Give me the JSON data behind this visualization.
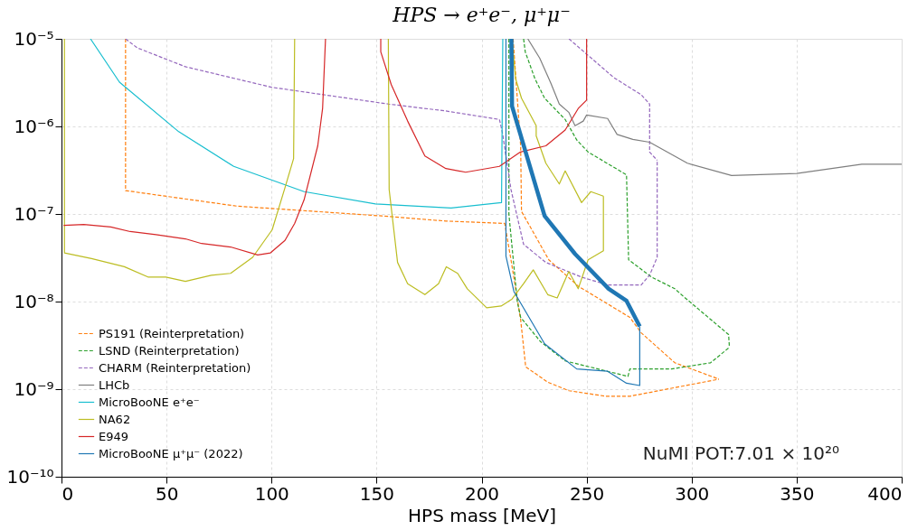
{
  "chart_data": {
    "type": "line",
    "title": "HPS → e⁺e⁻, μ⁺μ⁻",
    "xlabel": "HPS mass [MeV]",
    "log": true,
    "grid": true,
    "legend": "bottom left",
    "marker": "none",
    "xlim": [
      0,
      400
    ],
    "xticks": [
      0,
      50,
      100,
      150,
      200,
      250,
      300,
      350,
      400
    ],
    "ylim": [
      1e-10,
      1e-05
    ],
    "yticks": [
      {
        "value": 1e-10,
        "label": "10⁻¹⁰"
      },
      {
        "value": 1e-09,
        "label": "10⁻⁹"
      },
      {
        "value": 1e-08,
        "label": "10⁻⁸"
      },
      {
        "value": 1e-07,
        "label": "10⁻⁷"
      },
      {
        "value": 1e-06,
        "label": "10⁻⁶"
      },
      {
        "value": 1e-05,
        "label": "10⁻⁵"
      }
    ],
    "annotations": [
      "NuMI POT:7.01 × 10²⁰"
    ],
    "series": [
      {
        "name": "PS191 (Reinterpretation)",
        "color": "#ff7f0e",
        "line_style": "dashed",
        "x": [
          30.5,
          30.5,
          83.4,
          152.5,
          183,
          211,
          214,
          218.6,
          221,
          231.5,
          241.6,
          259,
          270.6,
          313
        ],
        "values": [
          1e-05,
          1.85e-07,
          1.23e-07,
          9.5e-08,
          8.3e-08,
          7.8e-08,
          3e-08,
          6.2e-09,
          1.8e-09,
          1.2e-09,
          9.6e-10,
          8.3e-10,
          8.3e-10,
          1.3e-09
        ]
      },
      {
        "color": "#ff7f0e",
        "line_style": "dashed",
        "x": [
          215,
          218.6,
          219,
          232,
          246,
          270.6,
          276,
          292,
          313
        ],
        "values": [
          1e-05,
          6e-07,
          1.07e-07,
          3e-08,
          1.5e-08,
          6.6e-09,
          4.4e-09,
          2e-09,
          1.3e-09
        ]
      },
      {
        "name": "LSND (Reinterpretation)",
        "color": "#2ca02c",
        "line_style": "dashed",
        "x": [
          213,
          213,
          217,
          218.6,
          228,
          239.8,
          269.7,
          270.6,
          290.5,
          309,
          318
        ],
        "values": [
          1e-05,
          1e-07,
          1e-08,
          6.6e-09,
          3.5e-09,
          2.1e-09,
          1.4e-09,
          1.7e-09,
          1.7e-09,
          2e-09,
          3e-09
        ]
      },
      {
        "color": "#2ca02c",
        "line_style": "dashed",
        "x": [
          220,
          220.8,
          225.4,
          230,
          239.8,
          245.3,
          250.7,
          269,
          270,
          281,
          292,
          296,
          317.6,
          318
        ],
        "values": [
          1e-05,
          7.1e-06,
          3.5e-06,
          2.1e-06,
          1.2e-06,
          7e-07,
          5.1e-07,
          2.8e-07,
          3e-08,
          1.9e-08,
          1.4e-08,
          1.15e-08,
          4.2e-09,
          3e-09
        ]
      },
      {
        "name": "CHARM (Reinterpretation)",
        "color": "#9467bd",
        "line_style": "dashed",
        "x": [
          30.5,
          36,
          59,
          100,
          155.6,
          183,
          208.5,
          210,
          214,
          220,
          230.6,
          247.6,
          260,
          276,
          280,
          283.6,
          283.6
        ],
        "values": [
          1e-05,
          7.9e-06,
          4.8e-06,
          2.8e-06,
          1.8e-06,
          1.5e-06,
          1.2e-06,
          8.3e-07,
          1.9e-07,
          4.5e-08,
          2.8e-08,
          1.9e-08,
          1.55e-08,
          1.55e-08,
          2e-08,
          3.2e-08,
          4.1e-07
        ]
      },
      {
        "color": "#9467bd",
        "line_style": "dashed",
        "x": [
          241.6,
          263,
          276,
          280,
          280,
          283.6
        ],
        "values": [
          1e-05,
          3.6e-06,
          2.3e-06,
          1.8e-06,
          5.1e-07,
          4.1e-07
        ]
      },
      {
        "name": "LHCb",
        "color": "#7f7f7f",
        "line_style": "solid",
        "x": [
          222,
          227.7,
          233,
          237,
          241.5,
          244.5,
          248.4,
          250,
          260,
          264.5,
          272,
          280,
          298,
          319,
          350,
          381,
          400
        ],
        "values": [
          1e-05,
          6e-06,
          3.1e-06,
          1.8e-06,
          1.45e-06,
          1.02e-06,
          1.15e-06,
          1.35e-06,
          1.23e-06,
          8.1e-07,
          7.1e-07,
          6.6e-07,
          3.8e-07,
          2.75e-07,
          2.9e-07,
          3.7e-07,
          3.7e-07
        ]
      },
      {
        "name": "MicroBooNE e⁺e⁻",
        "color": "#17becf",
        "line_style": "solid",
        "x": [
          13.8,
          27.6,
          55.8,
          82,
          115.5,
          149.5,
          185.5,
          209.5,
          210.1
        ],
        "values": [
          1e-05,
          3.2e-06,
          8.7e-07,
          3.5e-07,
          1.8e-07,
          1.3e-07,
          1.17e-07,
          1.35e-07,
          1e-05
        ]
      },
      {
        "name": "NA62",
        "color": "#bcbd22",
        "line_style": "solid",
        "x": [
          1.4,
          1.4,
          14.3,
          29.9,
          41.4,
          49.7,
          59,
          71.3,
          80.5,
          91,
          100.3,
          106.4,
          110.5,
          111
        ],
        "values": [
          1e-05,
          3.6e-08,
          3.1e-08,
          2.5e-08,
          1.9e-08,
          1.9e-08,
          1.7e-08,
          2e-08,
          2.1e-08,
          3.2e-08,
          6.6e-08,
          2e-07,
          4.3e-07,
          1e-05
        ]
      },
      {
        "color": "#bcbd22",
        "line_style": "solid",
        "x": [
          155.6,
          156,
          160,
          164.8,
          173,
          179.5,
          183.2,
          188.6,
          193.2,
          202.4,
          209.3,
          214.5,
          220,
          224.6,
          231.5,
          236,
          241.5,
          246,
          250.7,
          258,
          258
        ],
        "values": [
          1e-05,
          1.9e-07,
          2.8e-08,
          1.6e-08,
          1.2e-08,
          1.6e-08,
          2.5e-08,
          2.1e-08,
          1.4e-08,
          8.5e-09,
          8.9e-09,
          1.07e-08,
          1.6e-08,
          2.3e-08,
          1.2e-08,
          1.1e-08,
          2.2e-08,
          1.4e-08,
          3e-08,
          3.8e-08,
          1.6e-07
        ]
      },
      {
        "color": "#bcbd22",
        "line_style": "solid",
        "x": [
          214.5,
          216.2,
          219,
          226,
          226,
          230.6,
          237,
          239.8,
          247.6,
          252,
          258
        ],
        "values": [
          1e-05,
          3.5e-06,
          2.1e-06,
          1.02e-06,
          7.8e-07,
          3.8e-07,
          2.2e-07,
          3.1e-07,
          1.35e-07,
          1.8e-07,
          1.6e-07
        ]
      },
      {
        "name": "E949",
        "color": "#d62728",
        "line_style": "solid",
        "x": [
          1,
          10.6,
          23.5,
          32.7,
          45,
          59,
          66.7,
          80.5,
          93.4,
          99.5,
          106.4,
          111,
          115.5,
          122,
          124.3,
          125.7
        ],
        "values": [
          7.4e-08,
          7.6e-08,
          7.1e-08,
          6.3e-08,
          5.8e-08,
          5.2e-08,
          4.6e-08,
          4.2e-08,
          3.4e-08,
          3.6e-08,
          5e-08,
          7.8e-08,
          1.45e-07,
          6e-07,
          1.6e-06,
          1e-05
        ]
      },
      {
        "color": "#d62728",
        "line_style": "solid",
        "x": [
          152,
          152,
          157,
          164.8,
          173,
          183,
          192.4,
          208.5,
          218.5,
          230.6,
          239.8,
          246,
          250,
          250
        ],
        "values": [
          1e-05,
          7.1e-06,
          3e-06,
          1.15e-06,
          4.6e-07,
          3.3e-07,
          3e-07,
          3.5e-07,
          5.1e-07,
          6e-07,
          9.1e-07,
          1.6e-06,
          2e-06,
          1e-05
        ]
      },
      {
        "name": "MicroBooNE μ⁺μ⁻ (2022)",
        "color": "#1f77b4",
        "line_style": "solid",
        "x": [
          211.6,
          211.6,
          215.4,
          230,
          245.3,
          260,
          269,
          275.3,
          275.3
        ],
        "values": [
          1e-05,
          3.3e-08,
          1.3e-08,
          3.3e-09,
          1.7e-09,
          1.6e-09,
          1.17e-09,
          1.1e-09,
          5.2e-09
        ]
      },
      {
        "color": "#1f77b4",
        "line_style": "solid",
        "x": [
          214.2,
          214.5,
          230,
          244.5,
          260.5,
          269,
          275.3
        ],
        "values": [
          1e-05,
          1.7e-06,
          9.5e-08,
          3.5e-08,
          1.4e-08,
          1.02e-08,
          5.2e-09
        ]
      }
    ]
  }
}
